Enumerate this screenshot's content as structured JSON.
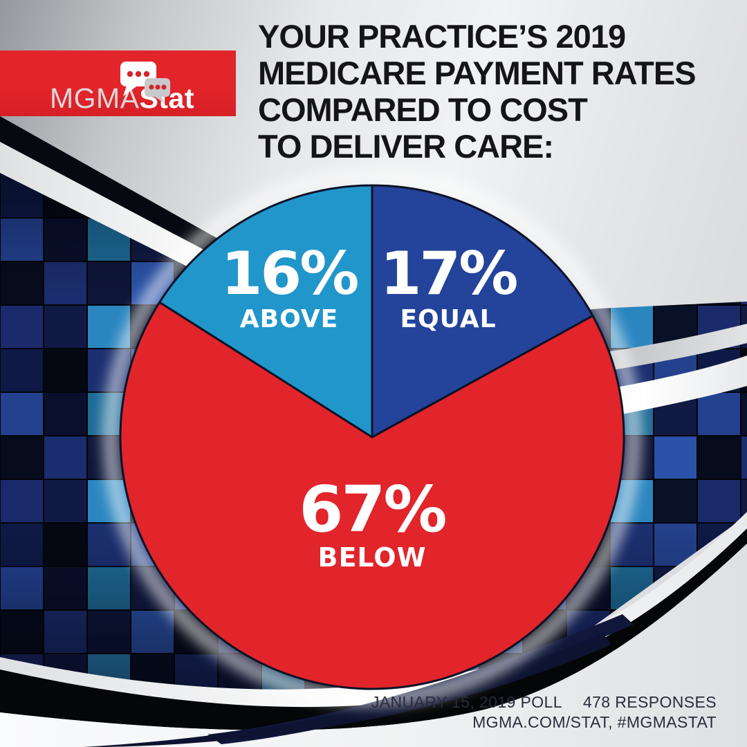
{
  "banner": {
    "brand_prefix": "MGMA",
    "brand_suffix": "Stat",
    "background_color": "#E2252B"
  },
  "title": {
    "lines": [
      "YOUR PRACTICE’S 2019",
      "MEDICARE PAYMENT RATES",
      "COMPARED TO COST",
      "TO DELIVER CARE:"
    ]
  },
  "chart_data": {
    "type": "pie",
    "title": "YOUR PRACTICE’S 2019 MEDICARE PAYMENT RATES COMPARED TO COST TO DELIVER CARE:",
    "slices": [
      {
        "label": "EQUAL",
        "value": 17,
        "display": "17%",
        "color": "#24439B"
      },
      {
        "label": "BELOW",
        "value": 67,
        "display": "67%",
        "color": "#E2242B"
      },
      {
        "label": "ABOVE",
        "value": 16,
        "display": "16%",
        "color": "#2196CB"
      }
    ],
    "start_angle_deg": 0,
    "direction": "clockwise",
    "outline_color": "#0D1226",
    "label_text_color": "#FFFFFF"
  },
  "footer": {
    "poll_date": "JANUARY 15, 2019 POLL",
    "responses": "478 RESPONSES",
    "links": "MGMA.COM/STAT, #MGMASTAT"
  }
}
